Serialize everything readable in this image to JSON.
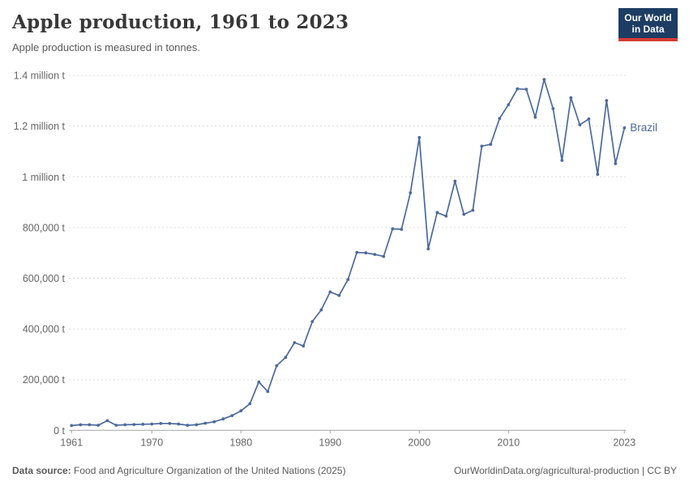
{
  "header": {
    "title": "Apple production, 1961 to 2023",
    "subtitle": "Apple production is measured in tonnes."
  },
  "logo": {
    "line1": "Our World",
    "line2": "in Data",
    "bg_color": "#1d3d63",
    "stripe_color": "#d73a34"
  },
  "chart_data": {
    "type": "line",
    "title": "Apple production, 1961 to 2023",
    "xlabel": "",
    "ylabel": "",
    "xlim": [
      1961,
      2023
    ],
    "ylim": [
      0,
      1400000
    ],
    "grid": "horizontal-dashed",
    "legend_position": "end-of-line-label",
    "x_ticks": [
      1961,
      1970,
      1980,
      1990,
      2000,
      2010,
      2023
    ],
    "y_ticks": [
      {
        "value": 0,
        "label": "0 t"
      },
      {
        "value": 200000,
        "label": "200,000 t"
      },
      {
        "value": 400000,
        "label": "400,000 t"
      },
      {
        "value": 600000,
        "label": "600,000 t"
      },
      {
        "value": 800000,
        "label": "800,000 t"
      },
      {
        "value": 1000000,
        "label": "1 million t"
      },
      {
        "value": 1200000,
        "label": "1.2 million t"
      },
      {
        "value": 1400000,
        "label": "1.4 million t"
      }
    ],
    "series": [
      {
        "name": "Brazil",
        "color": "#4c6a9c",
        "x": [
          1961,
          1962,
          1963,
          1964,
          1965,
          1966,
          1967,
          1968,
          1969,
          1970,
          1971,
          1972,
          1973,
          1974,
          1975,
          1976,
          1977,
          1978,
          1979,
          1980,
          1981,
          1982,
          1983,
          1984,
          1985,
          1986,
          1987,
          1988,
          1989,
          1990,
          1991,
          1992,
          1993,
          1994,
          1995,
          1996,
          1997,
          1998,
          1999,
          2000,
          2001,
          2002,
          2003,
          2004,
          2005,
          2006,
          2007,
          2008,
          2009,
          2010,
          2011,
          2012,
          2013,
          2014,
          2015,
          2016,
          2017,
          2018,
          2019,
          2020,
          2021,
          2022,
          2023
        ],
        "values": [
          19000,
          22000,
          22000,
          20000,
          38000,
          20000,
          22000,
          23000,
          24000,
          25000,
          27000,
          27000,
          25000,
          20000,
          22000,
          28000,
          34000,
          45000,
          58000,
          77000,
          105000,
          191000,
          153000,
          255000,
          288000,
          346000,
          333000,
          429000,
          475000,
          546000,
          532000,
          595000,
          702000,
          700000,
          694000,
          686000,
          795000,
          793000,
          937000,
          1155000,
          716000,
          859000,
          845000,
          983000,
          852000,
          868000,
          1121000,
          1128000,
          1230000,
          1285000,
          1347000,
          1345000,
          1235000,
          1384000,
          1269000,
          1065000,
          1312000,
          1205000,
          1228000,
          1010000,
          1301000,
          1052000,
          1193000
        ]
      }
    ]
  },
  "footer": {
    "source_label": "Data source:",
    "source_text": " Food and Agriculture Organization of the United Nations (2025)",
    "link_text": "OurWorldinData.org/agricultural-production",
    "separator": " | ",
    "license": "CC BY"
  }
}
